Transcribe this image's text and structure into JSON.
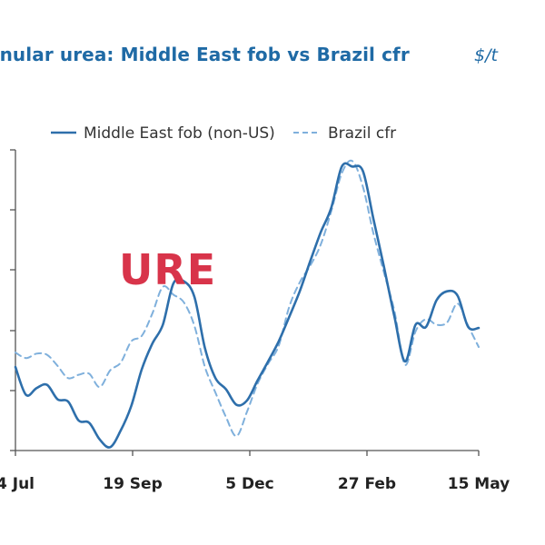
{
  "header": {
    "title": "anular urea: Middle East fob vs Brazil cfr",
    "unit": "$/t"
  },
  "watermark": {
    "text": "URE"
  },
  "colors": {
    "title": "#1f6aa5",
    "series_solid": "#2e6fab",
    "series_dashed": "#7fb0dc",
    "axis": "#555555",
    "watermark": "#d8344a"
  },
  "chart_data": {
    "type": "line",
    "x_ticks": [
      "4 Jul",
      "19 Sep",
      "5 Dec",
      "27 Feb",
      "15 May"
    ],
    "y_ticks_count": 6,
    "grid": false,
    "legend_position": "top",
    "series": [
      {
        "name": "Middle East fob (non-US)",
        "style": "solid",
        "values": [
          235,
          210,
          216,
          219,
          206,
          204,
          187,
          185,
          170,
          163,
          178,
          200,
          233,
          256,
          273,
          310,
          312,
          298,
          252,
          225,
          215,
          201,
          205,
          223,
          240,
          258,
          280,
          303,
          330,
          356,
          378,
          415,
          415,
          411,
          368,
          325,
          280,
          240,
          273,
          271,
          295,
          303,
          299,
          271,
          270
        ]
      },
      {
        "name": "Brazil cfr",
        "style": "dashed",
        "values": [
          248,
          243,
          247,
          246,
          236,
          225,
          228,
          229,
          217,
          232,
          239,
          258,
          263,
          283,
          307,
          300,
          293,
          272,
          235,
          212,
          190,
          173,
          195,
          220,
          238,
          254,
          289,
          311,
          326,
          345,
          375,
          409,
          420,
          397,
          355,
          320,
          285,
          237,
          267,
          278,
          273,
          275,
          292,
          272,
          253
        ]
      }
    ]
  }
}
